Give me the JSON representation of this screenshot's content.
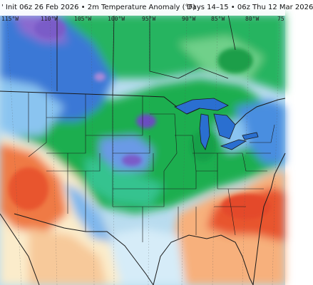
{
  "header": {
    "left_text": "' Init 06z 26 Feb 2026 • 2m Temperature Anomaly (°F)",
    "right_text": "Days 14–15 • 06z Thu 12 Mar 2026"
  },
  "longitude_labels": [
    "115°W",
    "110°W",
    "105°W",
    "100°W",
    "95°W",
    "90°W",
    "85°W",
    "80°W",
    "75"
  ],
  "colors": {
    "deep_purple": "#7a5cc8",
    "purple": "#a88ad8",
    "blue": "#3a78d6",
    "light_blue": "#8ac4f0",
    "pale_blue": "#c6e6fb",
    "teal_green": "#35c38f",
    "green": "#1fae4f",
    "pale_green": "#9fe08a",
    "cream": "#fbeccb",
    "peach": "#f7c99a",
    "orange": "#f08a4c",
    "red_orange": "#e8552e",
    "boundary": "#1a1a1a"
  }
}
